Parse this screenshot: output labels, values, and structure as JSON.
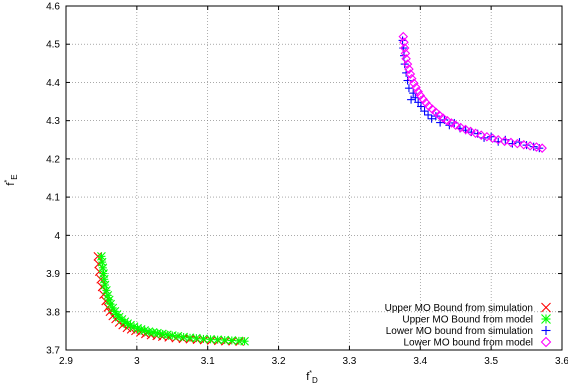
{
  "chart_data": {
    "type": "scatter",
    "title": "",
    "xlabel": "f*_D",
    "ylabel": "f*_E",
    "xlabel_text": "f",
    "xlabel_sup": "*",
    "xlabel_sub": "D",
    "ylabel_text": "f",
    "ylabel_sup": "*",
    "ylabel_sub": "E",
    "xlim": [
      2.9,
      3.6
    ],
    "ylim": [
      3.7,
      4.6
    ],
    "xticks": [
      "2.9",
      "3",
      "3.1",
      "3.2",
      "3.3",
      "3.4",
      "3.5",
      "3.6"
    ],
    "yticks": [
      "3.7",
      "3.8",
      "3.9",
      "4",
      "4.1",
      "4.2",
      "4.3",
      "4.4",
      "4.5",
      "4.6"
    ],
    "grid": true,
    "legend_position": "bottom-right",
    "series": [
      {
        "name": "Upper MO Bound from simulation",
        "marker": "x",
        "color": "#ff0000",
        "x": [
          2.945,
          2.946,
          2.947,
          2.949,
          2.951,
          2.953,
          2.956,
          2.959,
          2.962,
          2.966,
          2.97,
          2.975,
          2.98,
          2.986,
          2.992,
          2.998,
          3.005,
          3.012,
          3.02,
          3.028,
          3.036,
          3.045,
          3.055,
          3.065,
          3.075,
          3.085,
          3.095,
          3.105,
          3.115,
          3.125,
          3.135,
          3.145
        ],
        "y": [
          3.945,
          3.925,
          3.905,
          3.885,
          3.865,
          3.845,
          3.828,
          3.811,
          3.8,
          3.789,
          3.781,
          3.772,
          3.765,
          3.758,
          3.754,
          3.75,
          3.746,
          3.742,
          3.739,
          3.737,
          3.735,
          3.733,
          3.731,
          3.729,
          3.728,
          3.727,
          3.726,
          3.725,
          3.724,
          3.723,
          3.723,
          3.722
        ]
      },
      {
        "name": "Upper MO Bound from model",
        "marker": "asterisk",
        "color": "#00ff00",
        "x": [
          2.95,
          2.951,
          2.952,
          2.953,
          2.954,
          2.955,
          2.957,
          2.959,
          2.961,
          2.963,
          2.966,
          2.969,
          2.972,
          2.975,
          2.979,
          2.983,
          2.987,
          2.991,
          2.996,
          3.001,
          3.006,
          3.011,
          3.017,
          3.023,
          3.029,
          3.036,
          3.043,
          3.05,
          3.058,
          3.066,
          3.075,
          3.084,
          3.094,
          3.104,
          3.114,
          3.124,
          3.134,
          3.144,
          3.152
        ],
        "y": [
          3.945,
          3.93,
          3.915,
          3.9,
          3.885,
          3.87,
          3.856,
          3.843,
          3.831,
          3.82,
          3.81,
          3.801,
          3.793,
          3.786,
          3.78,
          3.774,
          3.769,
          3.765,
          3.761,
          3.757,
          3.754,
          3.751,
          3.748,
          3.746,
          3.744,
          3.742,
          3.74,
          3.738,
          3.736,
          3.734,
          3.732,
          3.731,
          3.729,
          3.728,
          3.727,
          3.726,
          3.725,
          3.724,
          3.723
        ]
      },
      {
        "name": "Lower MO bound from simulation",
        "marker": "plus",
        "color": "#0000ff",
        "x": [
          3.375,
          3.376,
          3.377,
          3.378,
          3.38,
          3.382,
          3.384,
          3.387,
          3.39,
          3.393,
          3.397,
          3.401,
          3.406,
          3.411,
          3.416,
          3.422,
          3.428,
          3.434,
          3.441,
          3.448,
          3.456,
          3.464,
          3.472,
          3.481,
          3.49,
          3.5,
          3.51,
          3.52,
          3.53,
          3.54,
          3.55,
          3.56,
          3.568
        ],
        "y": [
          4.51,
          4.49,
          4.47,
          4.448,
          4.425,
          4.405,
          4.385,
          4.355,
          4.372,
          4.36,
          4.348,
          4.337,
          4.325,
          4.315,
          4.305,
          4.312,
          4.295,
          4.302,
          4.288,
          4.294,
          4.28,
          4.275,
          4.27,
          4.266,
          4.255,
          4.258,
          4.245,
          4.25,
          4.24,
          4.244,
          4.236,
          4.232,
          4.228
        ]
      },
      {
        "name": "Lower MO bound from model",
        "marker": "diamond",
        "color": "#ff00ff",
        "x": [
          3.376,
          3.377,
          3.378,
          3.379,
          3.38,
          3.382,
          3.384,
          3.386,
          3.388,
          3.391,
          3.394,
          3.397,
          3.4,
          3.404,
          3.408,
          3.412,
          3.417,
          3.422,
          3.427,
          3.432,
          3.438,
          3.444,
          3.45,
          3.457,
          3.464,
          3.471,
          3.478,
          3.486,
          3.494,
          3.502,
          3.51,
          3.519,
          3.528,
          3.537,
          3.546,
          3.555,
          3.564,
          3.572
        ],
        "y": [
          4.52,
          4.505,
          4.49,
          4.476,
          4.462,
          4.448,
          4.435,
          4.422,
          4.41,
          4.398,
          4.387,
          4.376,
          4.366,
          4.356,
          4.347,
          4.338,
          4.33,
          4.322,
          4.314,
          4.307,
          4.3,
          4.294,
          4.288,
          4.282,
          4.277,
          4.272,
          4.267,
          4.262,
          4.258,
          4.254,
          4.25,
          4.246,
          4.243,
          4.24,
          4.237,
          4.234,
          4.231,
          4.228
        ]
      }
    ]
  }
}
